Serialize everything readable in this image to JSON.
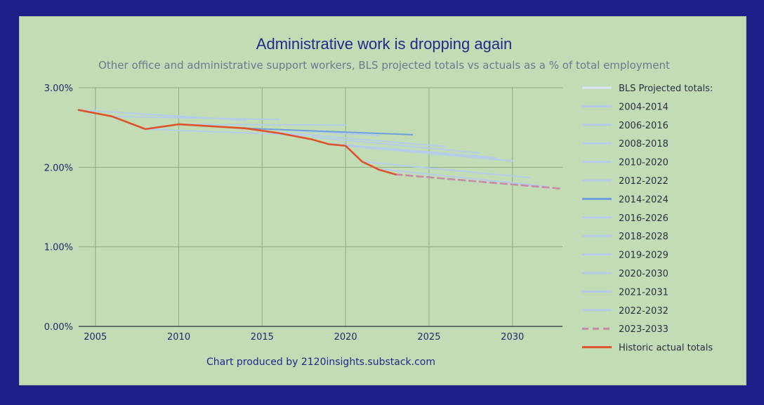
{
  "chart_data": {
    "type": "line",
    "title": "Administrative work is dropping again",
    "subtitle": "Other office and administrative support workers, BLS projected totals vs actuals as a % of total employment",
    "footer": "Chart produced by 2120insights.substack.com",
    "xlabel": "",
    "ylabel": "",
    "xlim": [
      2004,
      2033
    ],
    "ylim": [
      0,
      3
    ],
    "x_ticks": [
      2005,
      2010,
      2015,
      2020,
      2025,
      2030
    ],
    "x_tick_labels": [
      "2005",
      "2010",
      "2015",
      "2020",
      "2025",
      "2030"
    ],
    "y_ticks": [
      0,
      1,
      2,
      3
    ],
    "y_tick_labels": [
      "0.00%",
      "1.00%",
      "2.00%",
      "3.00%"
    ],
    "legend_header": "BLS Projected totals:",
    "legend_position": "right",
    "series": [
      {
        "name": "2004-2014",
        "color": "#b5cdea",
        "dash": false,
        "points": [
          [
            2004,
            2.72
          ],
          [
            2014,
            2.59
          ]
        ]
      },
      {
        "name": "2006-2016",
        "color": "#b5cdea",
        "dash": false,
        "points": [
          [
            2006,
            2.64
          ],
          [
            2016,
            2.6
          ]
        ]
      },
      {
        "name": "2008-2018",
        "color": "#b5cdea",
        "dash": false,
        "points": [
          [
            2008,
            2.48
          ],
          [
            2018,
            2.4
          ]
        ]
      },
      {
        "name": "2010-2020",
        "color": "#b5cdea",
        "dash": false,
        "points": [
          [
            2010,
            2.54
          ],
          [
            2020,
            2.53
          ]
        ]
      },
      {
        "name": "2012-2022",
        "color": "#b5cdea",
        "dash": false,
        "points": [
          [
            2012,
            2.52
          ],
          [
            2022,
            2.4
          ]
        ]
      },
      {
        "name": "2014-2024",
        "color": "#6f9fdd",
        "dash": false,
        "points": [
          [
            2014,
            2.49
          ],
          [
            2024,
            2.41
          ]
        ]
      },
      {
        "name": "2016-2026",
        "color": "#b5cdea",
        "dash": false,
        "points": [
          [
            2016,
            2.44
          ],
          [
            2026,
            2.26
          ]
        ]
      },
      {
        "name": "2018-2028",
        "color": "#b5cdea",
        "dash": false,
        "points": [
          [
            2018,
            2.38
          ],
          [
            2028,
            2.18
          ]
        ]
      },
      {
        "name": "2019-2029",
        "color": "#b5cdea",
        "dash": false,
        "points": [
          [
            2019,
            2.3
          ],
          [
            2029,
            2.12
          ]
        ]
      },
      {
        "name": "2020-2030",
        "color": "#b5cdea",
        "dash": false,
        "points": [
          [
            2020,
            2.27
          ],
          [
            2030,
            2.08
          ]
        ]
      },
      {
        "name": "2021-2031",
        "color": "#b5cdea",
        "dash": false,
        "points": [
          [
            2021,
            2.07
          ],
          [
            2031,
            1.87
          ]
        ]
      },
      {
        "name": "2022-2032",
        "color": "#b5cdea",
        "dash": false,
        "points": [
          [
            2022,
            1.98
          ],
          [
            2032,
            1.76
          ]
        ]
      },
      {
        "name": "2023-2033",
        "color": "#c98aa6",
        "dash": true,
        "points": [
          [
            2023,
            1.91
          ],
          [
            2033,
            1.73
          ]
        ]
      },
      {
        "name": "Historic actual totals",
        "color": "#e0522a",
        "dash": false,
        "points": [
          [
            2004,
            2.72
          ],
          [
            2006,
            2.64
          ],
          [
            2008,
            2.48
          ],
          [
            2010,
            2.54
          ],
          [
            2014,
            2.49
          ],
          [
            2016,
            2.43
          ],
          [
            2018,
            2.35
          ],
          [
            2019,
            2.29
          ],
          [
            2020,
            2.27
          ],
          [
            2021,
            2.07
          ],
          [
            2022,
            1.97
          ],
          [
            2023,
            1.91
          ]
        ]
      }
    ]
  }
}
